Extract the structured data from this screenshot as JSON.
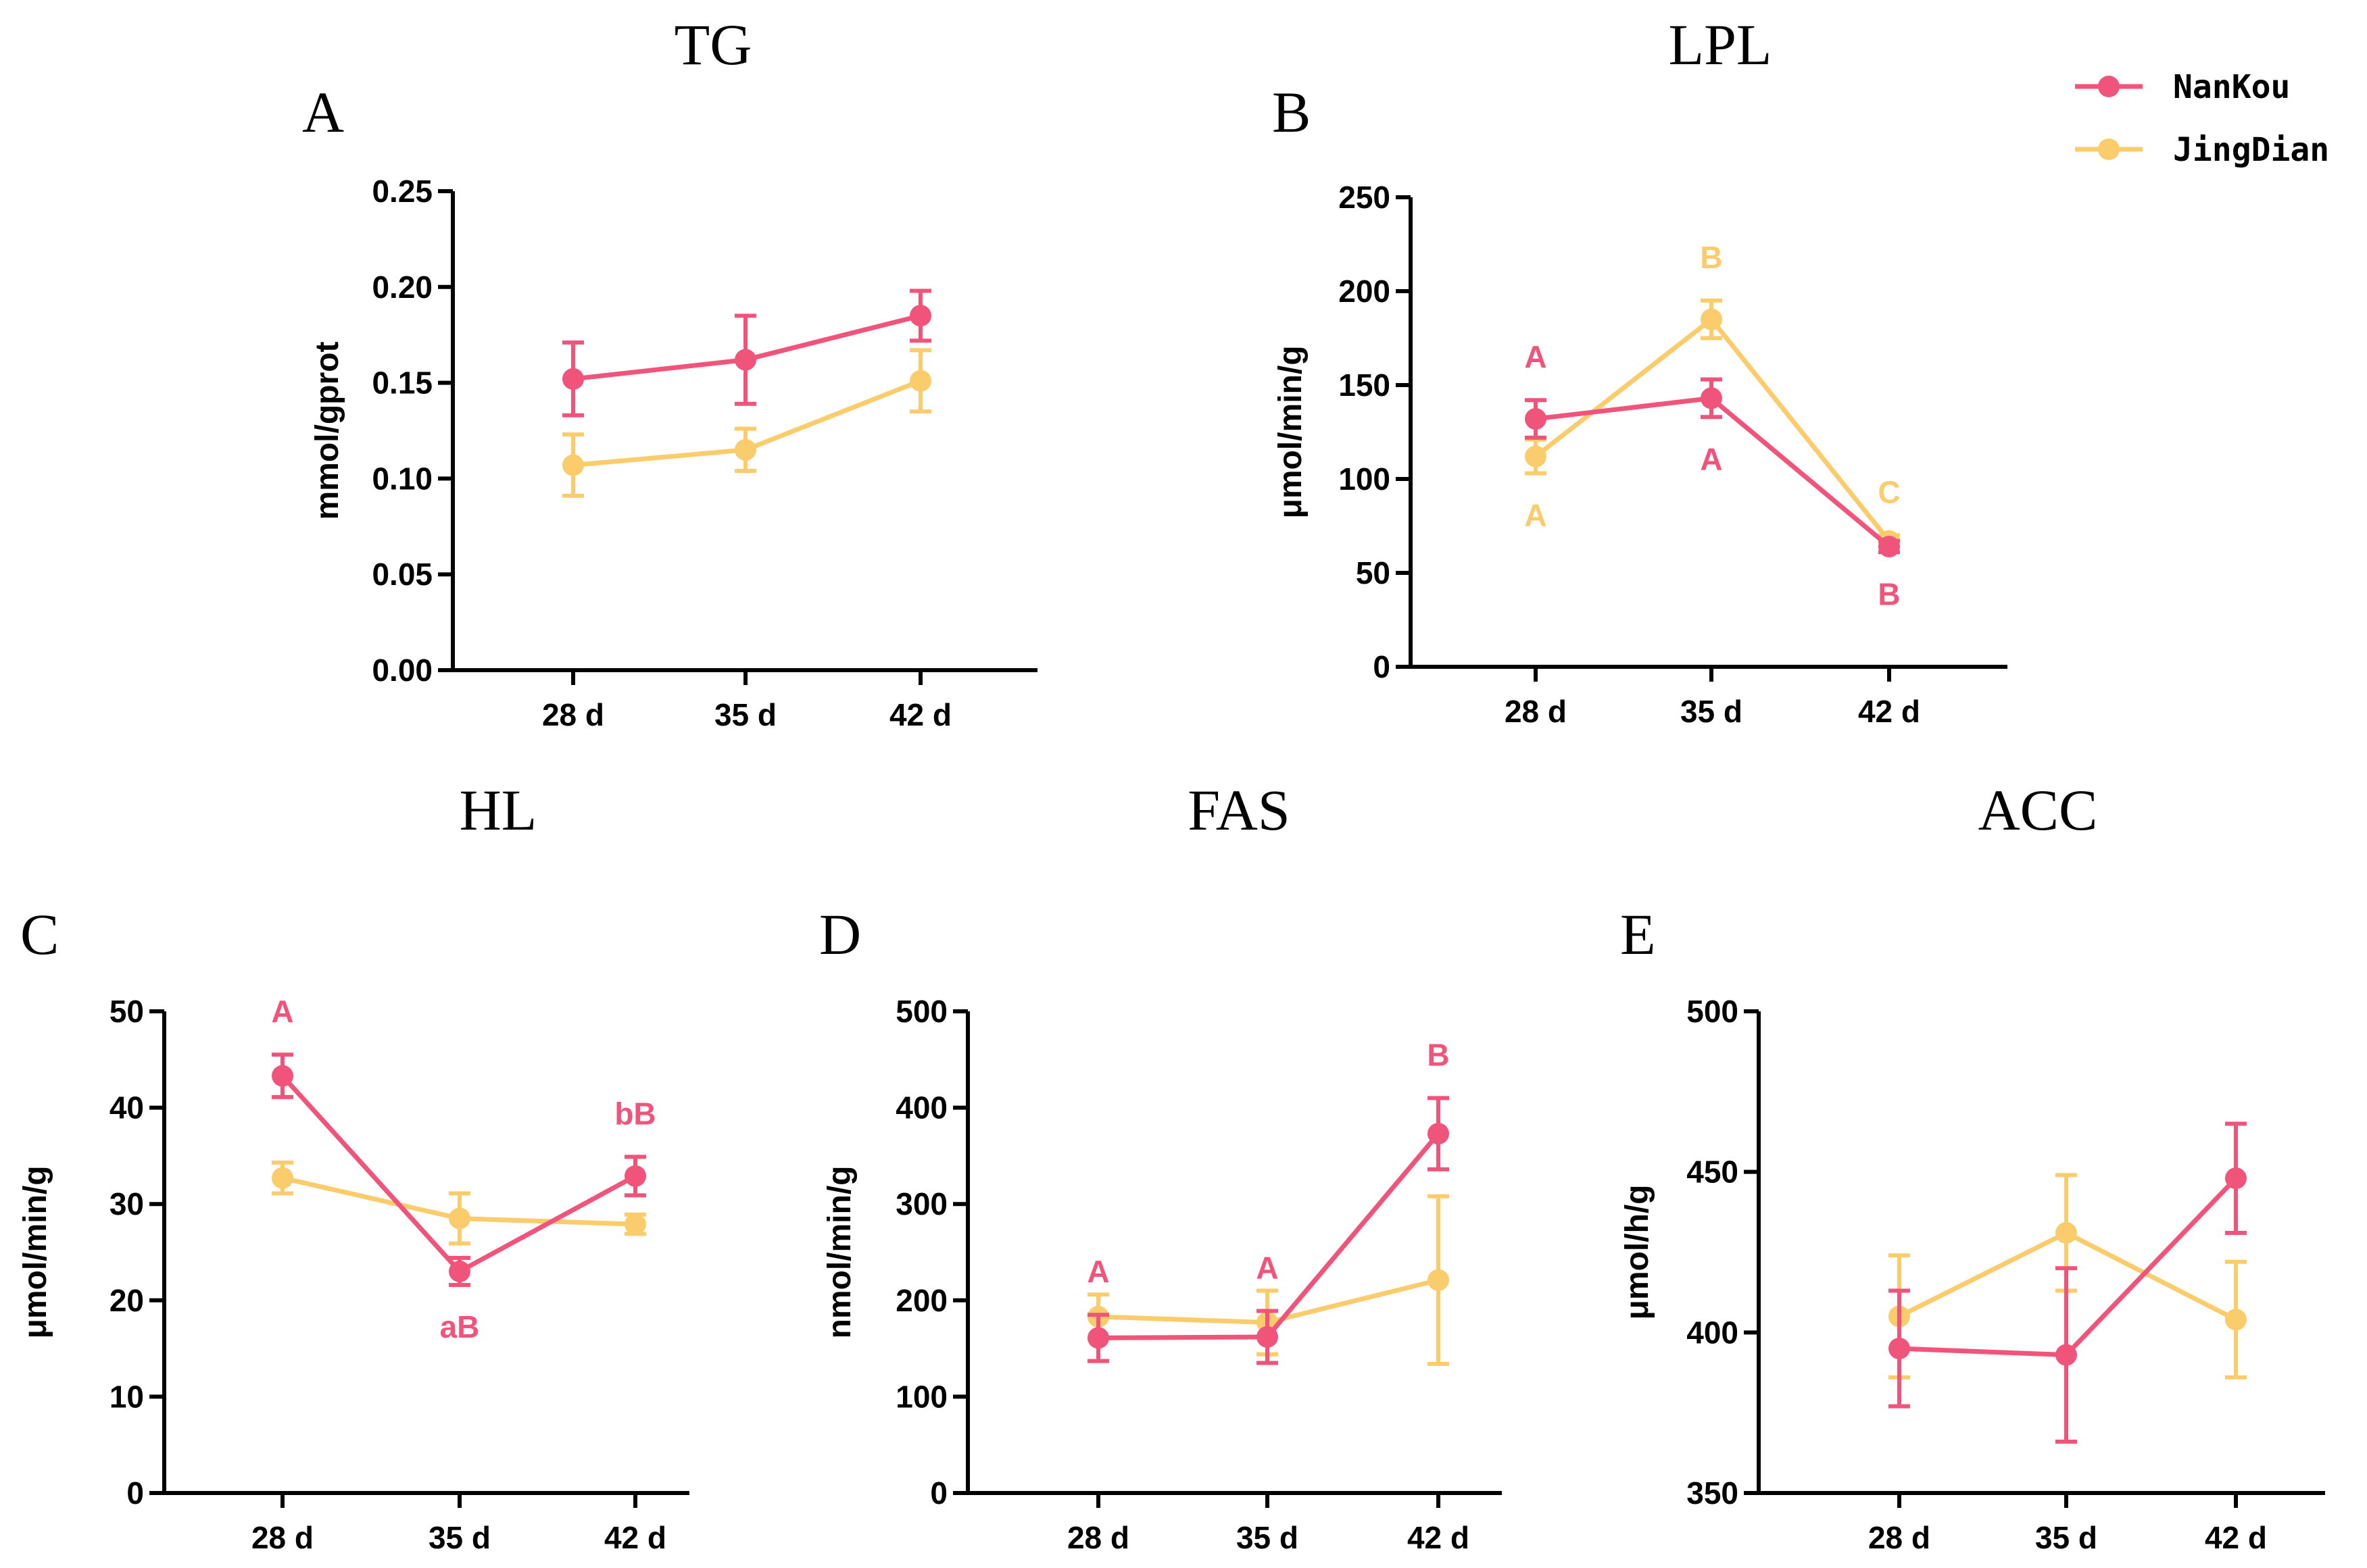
{
  "colors": {
    "nankou": "#f0547a",
    "jingdian": "#fbcc6c",
    "axis": "#000000"
  },
  "legend": {
    "entries": [
      {
        "name": "NanKou",
        "color": "#f0547a"
      },
      {
        "name": "JingDian",
        "color": "#fbcc6c"
      }
    ]
  },
  "chart_data": [
    {
      "type": "line",
      "letter": "A",
      "title": "TG",
      "xlabel": "",
      "ylabel": "mmol/gprot",
      "categories": [
        "28 d",
        "35 d",
        "42 d"
      ],
      "ylim": [
        0,
        0.25
      ],
      "yticks": [
        "0.00",
        "0.05",
        "0.10",
        "0.15",
        "0.20",
        "0.25"
      ],
      "series": [
        {
          "name": "NanKou",
          "values": [
            0.152,
            0.162,
            0.185
          ],
          "errors": [
            0.019,
            0.023,
            0.013
          ],
          "labels": [
            "",
            "",
            ""
          ]
        },
        {
          "name": "JingDian",
          "values": [
            0.107,
            0.115,
            0.151
          ],
          "errors": [
            0.016,
            0.011,
            0.016
          ],
          "labels": [
            "",
            "",
            ""
          ]
        }
      ]
    },
    {
      "type": "line",
      "letter": "B",
      "title": "LPL",
      "xlabel": "",
      "ylabel": "μmol/min/g",
      "categories": [
        "28 d",
        "35 d",
        "42 d"
      ],
      "ylim": [
        0,
        250
      ],
      "yticks": [
        "0",
        "50",
        "100",
        "150",
        "200",
        "250"
      ],
      "series": [
        {
          "name": "NanKou",
          "values": [
            132,
            143,
            64
          ],
          "errors": [
            10,
            10,
            3
          ],
          "labels": [
            "A",
            "A",
            "B"
          ]
        },
        {
          "name": "JingDian",
          "values": [
            112,
            185,
            67
          ],
          "errors": [
            9,
            10,
            3
          ],
          "labels": [
            "A",
            "B",
            "C"
          ]
        }
      ]
    },
    {
      "type": "line",
      "letter": "C",
      "title": "HL",
      "xlabel": "",
      "ylabel": "μmol/min/g",
      "categories": [
        "28 d",
        "35 d",
        "42 d"
      ],
      "ylim": [
        0,
        50
      ],
      "yticks": [
        "0",
        "10",
        "20",
        "30",
        "40",
        "50"
      ],
      "series": [
        {
          "name": "NanKou",
          "values": [
            43.3,
            23.0,
            32.9
          ],
          "errors": [
            2.2,
            1.4,
            2.0
          ],
          "labels": [
            "A",
            "aB",
            "bB"
          ]
        },
        {
          "name": "JingDian",
          "values": [
            32.7,
            28.5,
            27.9
          ],
          "errors": [
            1.6,
            2.6,
            1.0
          ],
          "labels": [
            "",
            "",
            ""
          ]
        }
      ]
    },
    {
      "type": "line",
      "letter": "D",
      "title": "FAS",
      "xlabel": "",
      "ylabel": "nmol/min/g",
      "categories": [
        "28 d",
        "35 d",
        "42 d"
      ],
      "ylim": [
        0,
        500
      ],
      "yticks": [
        "0",
        "100",
        "200",
        "300",
        "400",
        "500"
      ],
      "series": [
        {
          "name": "NanKou",
          "values": [
            161,
            162,
            373
          ],
          "errors": [
            24,
            27,
            37
          ],
          "labels": [
            "A",
            "A",
            "B"
          ]
        },
        {
          "name": "JingDian",
          "values": [
            183,
            177,
            221
          ],
          "errors": [
            23,
            33,
            87
          ],
          "labels": [
            "",
            "",
            ""
          ]
        }
      ]
    },
    {
      "type": "line",
      "letter": "E",
      "title": "ACC",
      "xlabel": "",
      "ylabel": "μmol/h/g",
      "categories": [
        "28 d",
        "35 d",
        "42 d"
      ],
      "ylim": [
        350,
        500
      ],
      "yticks": [
        "350",
        "400",
        "450",
        "500"
      ],
      "series": [
        {
          "name": "NanKou",
          "values": [
            395,
            393,
            448
          ],
          "errors": [
            18,
            27,
            17
          ],
          "labels": [
            "",
            "",
            ""
          ]
        },
        {
          "name": "JingDian",
          "values": [
            405,
            431,
            404
          ],
          "errors": [
            19,
            18,
            18
          ],
          "labels": [
            "",
            "",
            ""
          ]
        }
      ]
    }
  ]
}
